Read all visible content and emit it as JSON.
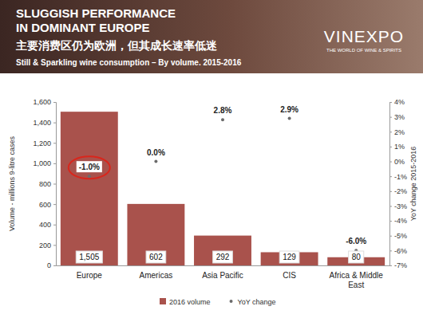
{
  "chart_data": {
    "type": "bar",
    "title": [
      "SLUGGISH PERFORMANCE",
      "IN DOMINANT EUROPE"
    ],
    "subtitle": [
      "主要消费区仍为欧洲，但其成长速率低迷",
      "Still & Sparkling wine consumption – By volume. 2015-2016"
    ],
    "annotations": [
      "VINEXPO",
      "THE WORLD OF WINE & SPIRITS"
    ],
    "categories": [
      "Europe",
      "Americas",
      "Asia Pacific",
      "CIS",
      "Africa & Middle East"
    ],
    "series": [
      {
        "name": "2016 volume",
        "type": "bar",
        "color": "#a9524c",
        "values": [
          1505,
          602,
          292,
          129,
          80
        ],
        "value_labels": [
          "1,505",
          "602",
          "292",
          "129",
          "80"
        ]
      },
      {
        "name": "YoY change",
        "type": "scatter",
        "axis": "y2",
        "color": "#6b6b6b",
        "marker": "circle",
        "values": [
          -1.0,
          0.0,
          2.8,
          2.9,
          -6.0
        ],
        "value_labels": [
          "-1.0%",
          "0.0%",
          "2.8%",
          "2.9%",
          "-6.0%"
        ]
      }
    ],
    "ylabel": "Volume - millions 9-litre cases",
    "y2label": "YoY change 2015-2016",
    "ylim": [
      0,
      1600
    ],
    "yticks": [
      0,
      200,
      400,
      600,
      800,
      {
        "value": 1000,
        "label": "1,000"
      },
      {
        "value": 1200,
        "label": "1,200"
      },
      {
        "value": 1400,
        "label": "1,400"
      },
      {
        "value": 1600,
        "label": "1,600"
      }
    ],
    "y2lim": [
      -7,
      4
    ],
    "y2ticks": [
      {
        "value": -7,
        "label": "-7%"
      },
      {
        "value": -6,
        "label": "-6%"
      },
      {
        "value": -5,
        "label": "-5%"
      },
      {
        "value": -4,
        "label": "-4%"
      },
      {
        "value": -3,
        "label": "-3%"
      },
      {
        "value": -2,
        "label": "-2%"
      },
      {
        "value": -1,
        "label": "-1%"
      },
      {
        "value": 0,
        "label": "0%"
      },
      {
        "value": 1,
        "label": "1%"
      },
      {
        "value": 2,
        "label": "2%"
      },
      {
        "value": 3,
        "label": "3%"
      },
      {
        "value": 4,
        "label": "4%"
      }
    ],
    "data_labels": true,
    "legend": "bottom",
    "grid": false
  }
}
